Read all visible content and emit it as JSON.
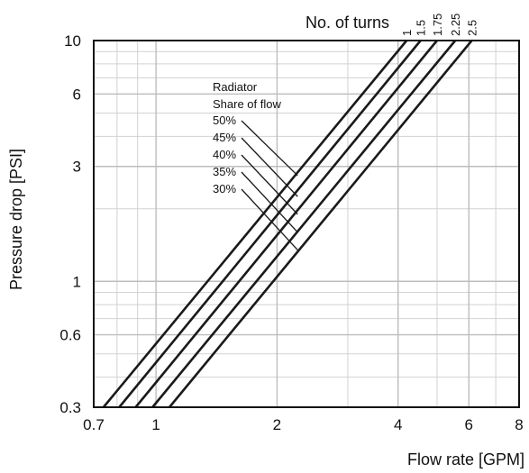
{
  "chart_data": {
    "type": "line",
    "scale": {
      "x": "log",
      "y": "log"
    },
    "xlim": [
      0.7,
      8
    ],
    "ylim": [
      0.3,
      10
    ],
    "xlabel": "Flow rate [GPM]",
    "ylabel": "Pressure drop [PSI]",
    "x_ticks": [
      0.7,
      1,
      2,
      4,
      6,
      8
    ],
    "x_tick_labels": [
      "0.7",
      "1",
      "2",
      "4",
      "6",
      "8"
    ],
    "y_ticks": [
      0.3,
      0.6,
      1,
      3,
      6,
      10
    ],
    "y_tick_labels": [
      "0.3",
      "0.6",
      "1",
      "3",
      "6",
      "10"
    ],
    "x_minor_grid": [
      0.8,
      0.9,
      3,
      5,
      7
    ],
    "y_minor_grid": [
      0.4,
      0.5,
      0.7,
      0.8,
      0.9,
      2,
      4,
      5,
      7,
      8,
      9
    ],
    "grid": true,
    "turns_title": "No. of turns",
    "series": [
      {
        "name": "1",
        "x": [
          0.74,
          4.2
        ],
        "y": [
          0.3,
          10
        ]
      },
      {
        "name": "1.5",
        "x": [
          0.81,
          4.55
        ],
        "y": [
          0.3,
          10
        ]
      },
      {
        "name": "1.75",
        "x": [
          0.89,
          5.0
        ],
        "y": [
          0.3,
          10
        ]
      },
      {
        "name": "2.25",
        "x": [
          0.98,
          5.55
        ],
        "y": [
          0.3,
          10
        ]
      },
      {
        "name": "2.5",
        "x": [
          1.08,
          6.1
        ],
        "y": [
          0.3,
          10
        ]
      }
    ],
    "annotation": {
      "title_lines": [
        "Radiator",
        "Share of flow"
      ],
      "items": [
        {
          "label": "50%",
          "target": [
            2.25,
            2.75
          ]
        },
        {
          "label": "45%",
          "target": [
            2.25,
            2.25
          ]
        },
        {
          "label": "40%",
          "target": [
            2.25,
            1.9
          ]
        },
        {
          "label": "35%",
          "target": [
            2.25,
            1.6
          ]
        },
        {
          "label": "30%",
          "target": [
            2.25,
            1.35
          ]
        }
      ]
    }
  }
}
